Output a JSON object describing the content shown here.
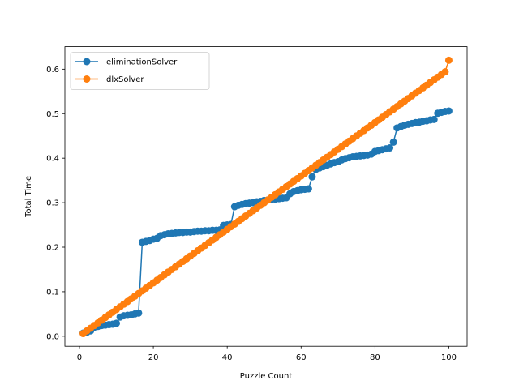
{
  "chart_data": {
    "type": "line",
    "title": "",
    "xlabel": "Puzzle Count",
    "ylabel": "Total Time",
    "xlim": [
      -3.95,
      104.95
    ],
    "ylim": [
      -0.0225,
      0.6505
    ],
    "x_ticks": [
      0,
      20,
      40,
      60,
      80,
      100
    ],
    "x_tick_labels": [
      "0",
      "20",
      "40",
      "60",
      "80",
      "100"
    ],
    "y_ticks": [
      0.0,
      0.1,
      0.2,
      0.3,
      0.4,
      0.5,
      0.6
    ],
    "y_tick_labels": [
      "0.0",
      "0.1",
      "0.2",
      "0.3",
      "0.4",
      "0.5",
      "0.6"
    ],
    "grid": false,
    "legend_position": "upper-left",
    "series": [
      {
        "name": "eliminationSolver",
        "color": "#1f77b4",
        "marker": "circle",
        "x": [
          1,
          2,
          3,
          4,
          5,
          6,
          7,
          8,
          9,
          10,
          11,
          12,
          13,
          14,
          15,
          16,
          17,
          18,
          19,
          20,
          21,
          22,
          23,
          24,
          25,
          26,
          27,
          28,
          29,
          30,
          31,
          32,
          33,
          34,
          35,
          36,
          37,
          38,
          39,
          40,
          41,
          42,
          43,
          44,
          45,
          46,
          47,
          48,
          49,
          50,
          51,
          52,
          53,
          54,
          55,
          56,
          57,
          58,
          59,
          60,
          61,
          62,
          63,
          64,
          65,
          66,
          67,
          68,
          69,
          70,
          71,
          72,
          73,
          74,
          75,
          76,
          77,
          78,
          79,
          80,
          81,
          82,
          83,
          84,
          85,
          86,
          87,
          88,
          89,
          90,
          91,
          92,
          93,
          94,
          95,
          96,
          97,
          98,
          99,
          100
        ],
        "y": [
          0.007,
          0.009,
          0.012,
          0.02,
          0.022,
          0.024,
          0.025,
          0.026,
          0.027,
          0.029,
          0.043,
          0.046,
          0.047,
          0.048,
          0.05,
          0.052,
          0.211,
          0.213,
          0.215,
          0.218,
          0.22,
          0.226,
          0.228,
          0.23,
          0.231,
          0.232,
          0.233,
          0.233,
          0.234,
          0.234,
          0.235,
          0.236,
          0.236,
          0.237,
          0.237,
          0.238,
          0.238,
          0.239,
          0.249,
          0.25,
          0.251,
          0.291,
          0.294,
          0.296,
          0.298,
          0.299,
          0.3,
          0.302,
          0.303,
          0.305,
          0.306,
          0.307,
          0.308,
          0.309,
          0.31,
          0.311,
          0.32,
          0.325,
          0.327,
          0.329,
          0.33,
          0.331,
          0.358,
          0.375,
          0.378,
          0.381,
          0.384,
          0.387,
          0.39,
          0.392,
          0.396,
          0.399,
          0.401,
          0.403,
          0.404,
          0.405,
          0.406,
          0.407,
          0.409,
          0.415,
          0.417,
          0.419,
          0.421,
          0.423,
          0.436,
          0.468,
          0.471,
          0.474,
          0.476,
          0.478,
          0.48,
          0.481,
          0.483,
          0.484,
          0.486,
          0.487,
          0.501,
          0.503,
          0.505,
          0.506
        ]
      },
      {
        "name": "dlxSolver",
        "color": "#ff7f0e",
        "marker": "circle",
        "x": [
          1,
          2,
          3,
          4,
          5,
          6,
          7,
          8,
          9,
          10,
          11,
          12,
          13,
          14,
          15,
          16,
          17,
          18,
          19,
          20,
          21,
          22,
          23,
          24,
          25,
          26,
          27,
          28,
          29,
          30,
          31,
          32,
          33,
          34,
          35,
          36,
          37,
          38,
          39,
          40,
          41,
          42,
          43,
          44,
          45,
          46,
          47,
          48,
          49,
          50,
          51,
          52,
          53,
          54,
          55,
          56,
          57,
          58,
          59,
          60,
          61,
          62,
          63,
          64,
          65,
          66,
          67,
          68,
          69,
          70,
          71,
          72,
          73,
          74,
          75,
          76,
          77,
          78,
          79,
          80,
          81,
          82,
          83,
          84,
          85,
          86,
          87,
          88,
          89,
          90,
          91,
          92,
          93,
          94,
          95,
          96,
          97,
          98,
          99,
          100
        ],
        "y": [
          0.006,
          0.012,
          0.018,
          0.024,
          0.03,
          0.036,
          0.042,
          0.048,
          0.054,
          0.06,
          0.066,
          0.072,
          0.078,
          0.084,
          0.09,
          0.096,
          0.102,
          0.108,
          0.114,
          0.12,
          0.126,
          0.132,
          0.138,
          0.144,
          0.15,
          0.156,
          0.162,
          0.168,
          0.174,
          0.18,
          0.186,
          0.192,
          0.198,
          0.204,
          0.21,
          0.216,
          0.222,
          0.228,
          0.234,
          0.24,
          0.246,
          0.252,
          0.258,
          0.264,
          0.27,
          0.276,
          0.282,
          0.288,
          0.294,
          0.3,
          0.306,
          0.312,
          0.318,
          0.324,
          0.33,
          0.336,
          0.342,
          0.348,
          0.354,
          0.36,
          0.366,
          0.372,
          0.378,
          0.384,
          0.39,
          0.396,
          0.402,
          0.408,
          0.414,
          0.42,
          0.426,
          0.432,
          0.438,
          0.444,
          0.45,
          0.456,
          0.462,
          0.468,
          0.474,
          0.48,
          0.486,
          0.492,
          0.498,
          0.504,
          0.51,
          0.516,
          0.522,
          0.528,
          0.534,
          0.54,
          0.546,
          0.552,
          0.558,
          0.564,
          0.57,
          0.576,
          0.582,
          0.588,
          0.594,
          0.62
        ]
      }
    ]
  }
}
